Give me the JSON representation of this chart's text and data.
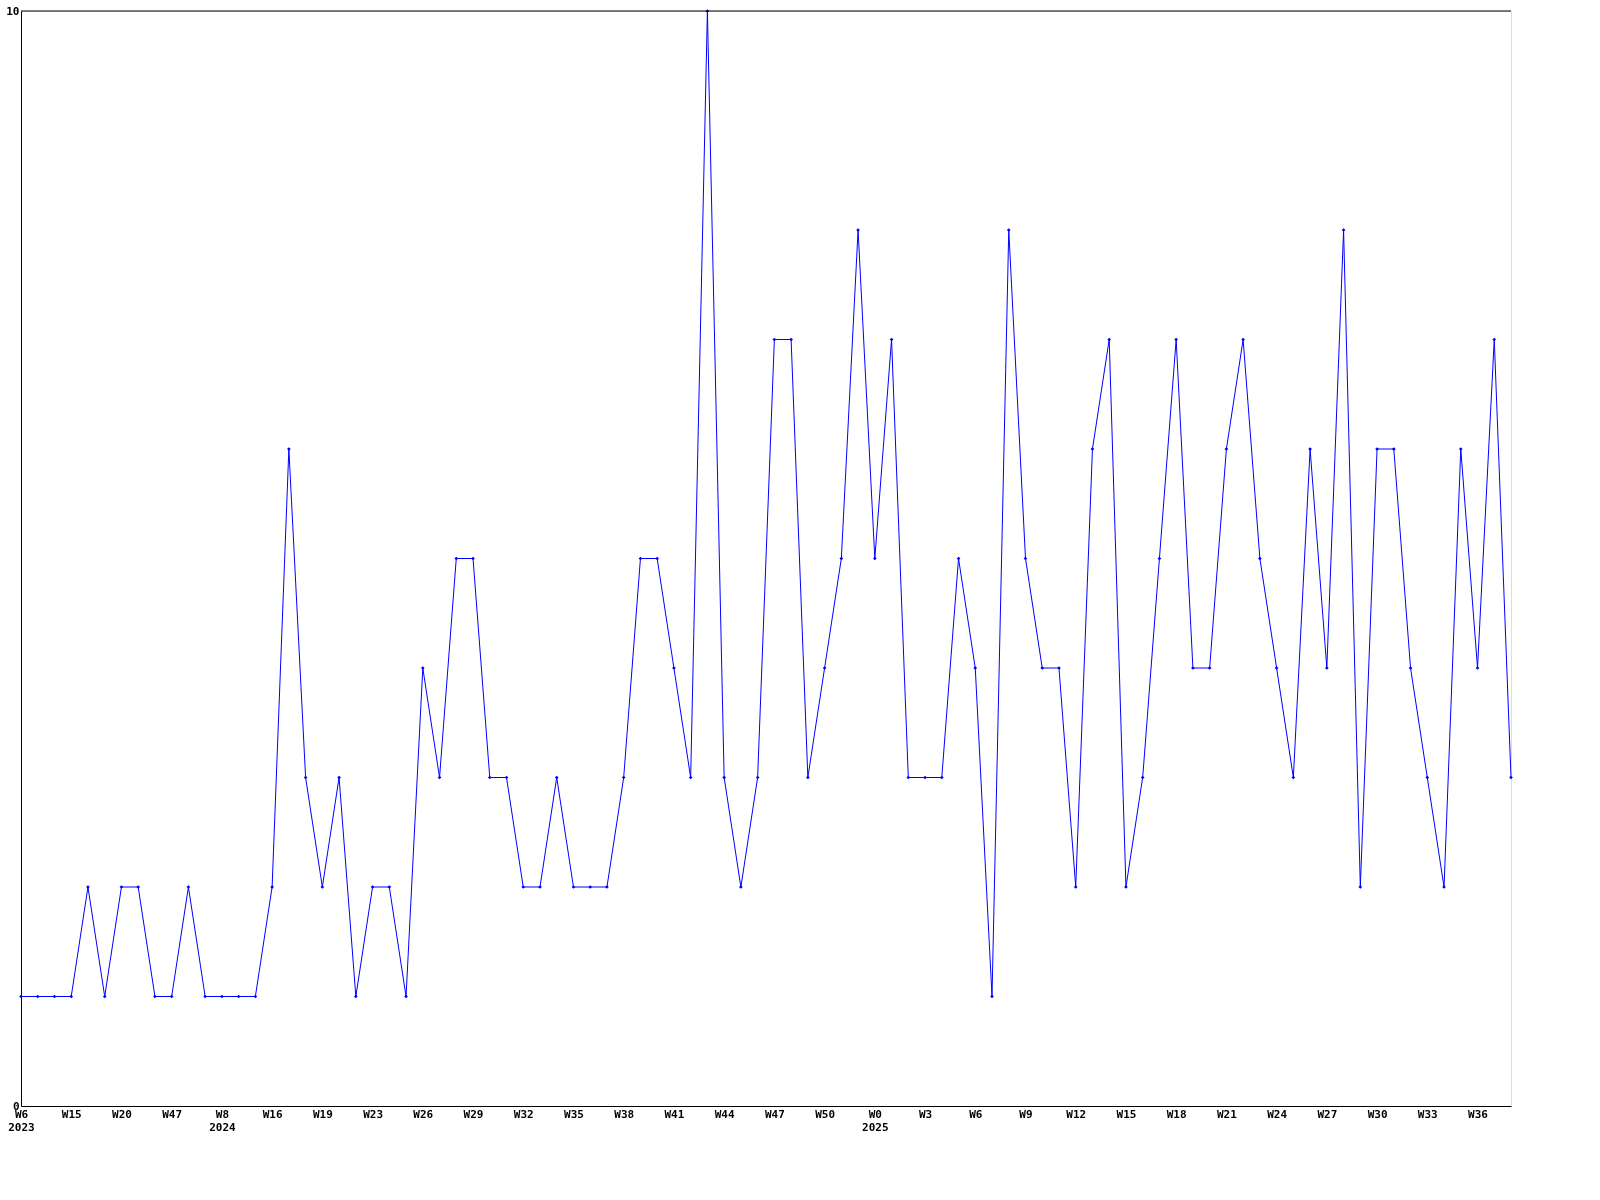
{
  "chart_data": {
    "type": "line",
    "categories": [
      "W6\n2023",
      null,
      null,
      "W15",
      null,
      null,
      "W20",
      null,
      null,
      "W47",
      null,
      null,
      "W8\n2024",
      null,
      null,
      "W16",
      null,
      null,
      "W19",
      null,
      null,
      "W23",
      null,
      null,
      "W26",
      null,
      null,
      "W29",
      null,
      null,
      "W32",
      null,
      null,
      "W35",
      null,
      null,
      "W38",
      null,
      null,
      "W41",
      null,
      null,
      "W44",
      null,
      null,
      "W47",
      null,
      null,
      "W50",
      null,
      null,
      "W0\n2025",
      null,
      null,
      "W3",
      null,
      null,
      "W6",
      null,
      null,
      "W9",
      null,
      null,
      "W12",
      null,
      null,
      "W15",
      null,
      null,
      "W18",
      null,
      null,
      "W21",
      null,
      null,
      "W24",
      null,
      null,
      "W27",
      null,
      null,
      "W30",
      null,
      null,
      "W33",
      null,
      null,
      "W36",
      null,
      null
    ],
    "series": [
      {
        "color": "#0000ff",
        "values": [
          1,
          1,
          1,
          1,
          2,
          1,
          2,
          2,
          1,
          1,
          2,
          1,
          1,
          1,
          1,
          2,
          6,
          3,
          2,
          3,
          1,
          2,
          2,
          1,
          4,
          3,
          5,
          5,
          3,
          3,
          2,
          2,
          3,
          2,
          2,
          2,
          3,
          5,
          5,
          4,
          3,
          10,
          3,
          2,
          3,
          7,
          7,
          3,
          4,
          5,
          8,
          5,
          7,
          3,
          3,
          3,
          5,
          4,
          1,
          8,
          5,
          4,
          4,
          2,
          6,
          7,
          2,
          3,
          5,
          7,
          4,
          4,
          6,
          7,
          5,
          4,
          3,
          6,
          4,
          8,
          2,
          6,
          6,
          4,
          3,
          2,
          6,
          4,
          7,
          3
        ]
      }
    ],
    "ylim": [
      0,
      10
    ],
    "yticks": [
      0,
      10
    ],
    "marker": "diamond",
    "line_style": "solid"
  }
}
